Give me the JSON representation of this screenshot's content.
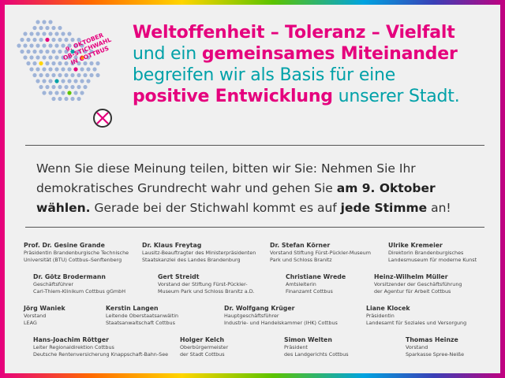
{
  "logo": {
    "badge_line1": "9. OKTOBER",
    "badge_line2": "OB-STICHWAHL",
    "badge_line3": "IN COTTBUS",
    "icon": "ballot-check-icon"
  },
  "headline": {
    "l1": "Weltoffenheit – Toleranz – Vielfalt",
    "l2a": "und ein ",
    "l2b": "gemeinsames Miteinander",
    "l3": "begreifen wir als Basis für eine",
    "l4a": "positive Entwicklung",
    "l4b": " unserer Stadt."
  },
  "appeal": {
    "p1": "Wenn Sie diese Meinung teilen, bitten wir Sie: Nehmen Sie Ihr",
    "p2a": "demokratisches Grundrecht wahr und gehen Sie ",
    "p2b": "am 9. Oktober",
    "p3a": "wählen.",
    "p3b": " Gerade bei der Stichwahl kommt es auf ",
    "p3c": "jede Stimme",
    "p3d": " an!"
  },
  "signatories": [
    {
      "name": "Prof. Dr. Gesine Grande",
      "l1": "Präsidentin Brandenburgische Technische",
      "l2": "Universität (BTU) Cottbus–Senftenberg"
    },
    {
      "name": "Dr. Klaus Freytag",
      "l1": "Lausitz-Beauftragter des Ministerpräsidenten",
      "l2": "Staatskanzlei des Landes Brandenburg"
    },
    {
      "name": "Dr. Stefan Körner",
      "l1": "Vorstand Stiftung Fürst-Pückler-Museum",
      "l2": "Park und Schloss Branitz"
    },
    {
      "name": "Ulrike Kremeier",
      "l1": "Direktorin Brandenburgisches",
      "l2": "Landesmuseum für moderne Kunst"
    },
    {
      "name": "Dr. Götz Brodermann",
      "l1": "Geschäftsführer",
      "l2": "Carl-Thiem-Klinikum Cottbus gGmbH"
    },
    {
      "name": "Gert Streidt",
      "l1": "Vorstand der Stiftung Fürst-Pückler-",
      "l2": "Museum Park und Schloss Branitz a.D."
    },
    {
      "name": "Christiane Wrede",
      "l1": "Amtsleiterin",
      "l2": "Finanzamt Cottbus"
    },
    {
      "name": "Heinz-Wilhelm Müller",
      "l1": "Vorsitzender der Geschäftsführung",
      "l2": "der Agentur für Arbeit Cottbus"
    },
    {
      "name": "Jörg Waniek",
      "l1": "Vorstand",
      "l2": "LEAG"
    },
    {
      "name": "Kerstin Langen",
      "l1": "Leitende Oberstaatsanwältin",
      "l2": "Staatsanwaltschaft Cottbus"
    },
    {
      "name": "Dr. Wolfgang Krüger",
      "l1": "Hauptgeschäftsführer",
      "l2": "Industrie- und Handelskammer (IHK) Cottbus"
    },
    {
      "name": "Liane Klocek",
      "l1": "Präsidentin",
      "l2": "Landesamt für Soziales und Versorgung"
    },
    {
      "name": "Hans-Joachim Röttger",
      "l1": "Leiter Regionaldirektion Cottbus",
      "l2": "Deutsche Rentenversicherung Knappschaft-Bahn-See"
    },
    {
      "name": "Holger Kelch",
      "l1": "Oberbürgermeister",
      "l2": "der Stadt Cottbus"
    },
    {
      "name": "Simon Welten",
      "l1": "Präsident",
      "l2": "des Landgerichts Cottbus"
    },
    {
      "name": "Thomas Heinze",
      "l1": "Vorstand",
      "l2": "Sparkasse Spree-Neiße"
    }
  ],
  "colors": {
    "pink": "#e5007d",
    "teal": "#00a1a8",
    "text": "#333333",
    "background": "#f0f0f0"
  }
}
